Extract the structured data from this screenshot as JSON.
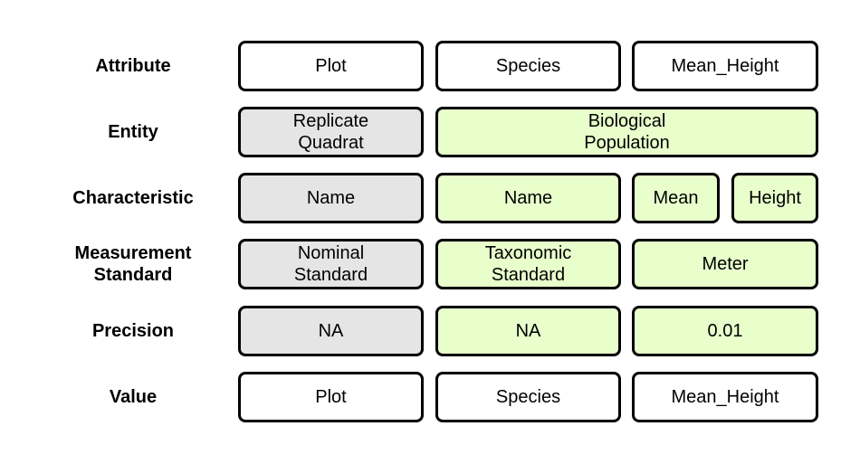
{
  "rows": {
    "attribute": {
      "label": "Attribute",
      "cells": [
        "Plot",
        "Species",
        "Mean_Height"
      ]
    },
    "entity": {
      "label": "Entity",
      "cells": [
        "Replicate\nQuadrat",
        "Biological\nPopulation"
      ]
    },
    "characteristic": {
      "label": "Characteristic",
      "cells": [
        "Name",
        "Name",
        "Mean",
        "Height"
      ]
    },
    "measurement_standard": {
      "label": "Measurement\nStandard",
      "cells": [
        "Nominal\nStandard",
        "Taxonomic\nStandard",
        "Meter"
      ]
    },
    "precision": {
      "label": "Precision",
      "cells": [
        "NA",
        "NA",
        "0.01"
      ]
    },
    "value": {
      "label": "Value",
      "cells": [
        "Plot",
        "Species",
        "Mean_Height"
      ]
    }
  },
  "colors": {
    "gray_fill": "#e5e5e5",
    "green_fill": "#e8ffcc",
    "white_fill": "#ffffff",
    "border": "#000000"
  }
}
